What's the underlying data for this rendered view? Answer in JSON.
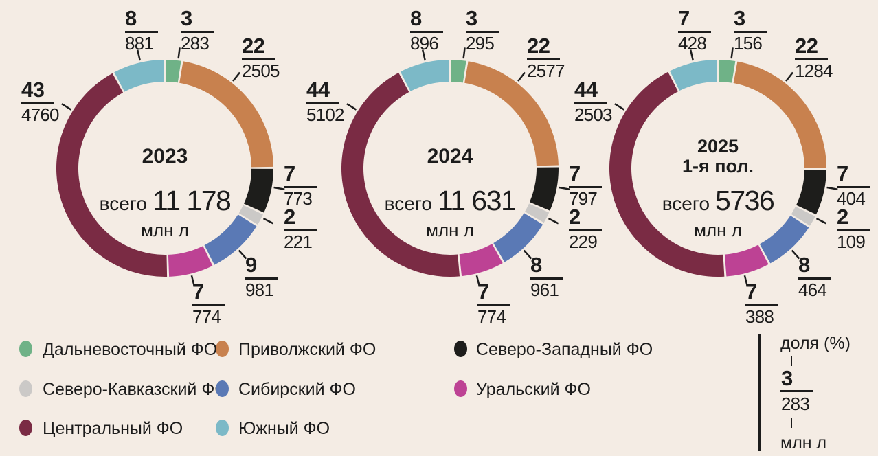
{
  "page": {
    "background": "#f4ece4",
    "text_color": "#1c1c1c"
  },
  "chart_data": {
    "type": "donut",
    "unit": "млн л",
    "districts": [
      {
        "name": "Дальневосточный ФО",
        "color": "#6fb287"
      },
      {
        "name": "Приволжский ФО",
        "color": "#c8814e"
      },
      {
        "name": "Северо-Западный ФО",
        "color": "#1d1d1b"
      },
      {
        "name": "Северо-Кавказский ФО",
        "color": "#cbc9c7"
      },
      {
        "name": "Сибирский ФО",
        "color": "#5a79b5"
      },
      {
        "name": "Уральский ФО",
        "color": "#bd4294"
      },
      {
        "name": "Центральный ФО",
        "color": "#7a2b44"
      },
      {
        "name": "Южный ФО",
        "color": "#7cb9c7"
      }
    ],
    "charts": [
      {
        "title": "2023",
        "subtitle": "",
        "total_prefix": "всего",
        "total_display": "11 178",
        "total": 11178,
        "shares": [
          3,
          22,
          7,
          2,
          9,
          7,
          43,
          8
        ],
        "values": [
          283,
          2505,
          773,
          221,
          981,
          774,
          4760,
          881
        ]
      },
      {
        "title": "2024",
        "subtitle": "",
        "total_prefix": "всего",
        "total_display": "11 631",
        "total": 11631,
        "shares": [
          3,
          22,
          7,
          2,
          8,
          7,
          44,
          8
        ],
        "values": [
          295,
          2577,
          797,
          229,
          961,
          774,
          5102,
          896
        ]
      },
      {
        "title": "2025",
        "subtitle": "1-я пол.",
        "total_prefix": "всего",
        "total_display": "5736",
        "total": 5736,
        "shares": [
          3,
          22,
          7,
          2,
          8,
          7,
          44,
          7
        ],
        "values": [
          156,
          1284,
          404,
          109,
          464,
          388,
          2503,
          428
        ]
      }
    ]
  },
  "legend": {
    "columns": [
      [
        "Дальневосточный ФО",
        "Северо-Кавказский ФО",
        "Центральный ФО"
      ],
      [
        "Приволжский ФО",
        "Сибирский ФО",
        "Южный ФО"
      ],
      [
        "Северо-Западный ФО",
        "Уральский ФО"
      ]
    ]
  },
  "key": {
    "share_label": "доля (%)",
    "numerator": "3",
    "denominator": "283",
    "unit": "млн л"
  }
}
